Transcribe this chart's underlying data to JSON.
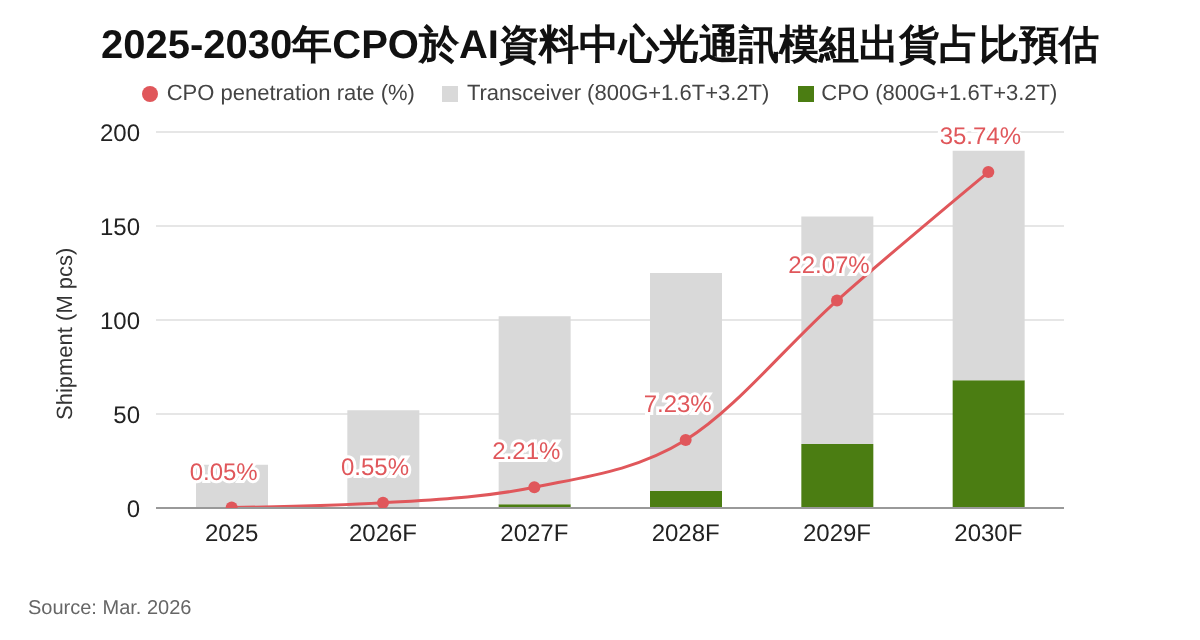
{
  "chart_data": {
    "type": "bar",
    "title": "2025-2030年CPO於AI資料中心光通訊模組出貨占比預估",
    "ylabel": "Shipment (M pcs)",
    "categories": [
      "2025",
      "2026F",
      "2027F",
      "2028F",
      "2029F",
      "2030F"
    ],
    "stacked": true,
    "series": [
      {
        "name": "CPO (800G+1.6T+3.2T)",
        "color": "#4b7d12",
        "values": [
          0,
          0,
          2,
          9,
          34,
          68
        ]
      },
      {
        "name": "Transceiver (800G+1.6T+3.2T)",
        "color": "#d9d9d9",
        "values": [
          23,
          52,
          100,
          116,
          121,
          122
        ]
      },
      {
        "name": "CPO penetration rate (%)",
        "type": "line",
        "axis": "y2",
        "color": "#e0575b",
        "marker": "circle",
        "values": [
          0.05,
          0.55,
          2.21,
          7.23,
          22.07,
          35.74
        ],
        "value_labels": [
          "0.05%",
          "0.55%",
          "2.21%",
          "7.23%",
          "22.07%",
          "35.74%"
        ]
      }
    ],
    "ylim": [
      0,
      200
    ],
    "yticks": [
      0,
      50,
      100,
      150,
      200
    ],
    "y2lim": [
      0,
      40
    ],
    "tick_labels": "x_y",
    "grid": "y",
    "legend": "top",
    "annotations": [
      "Source: Mar. 2026"
    ]
  }
}
